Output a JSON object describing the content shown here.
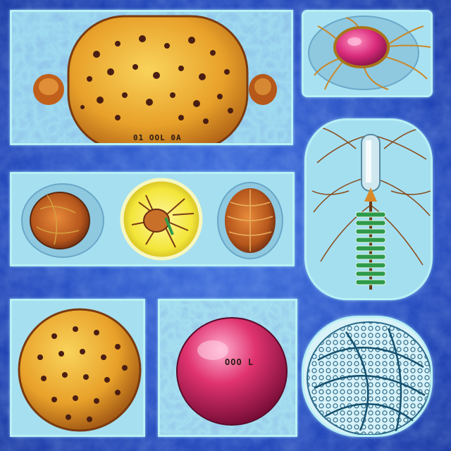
{
  "image": {
    "labels": {
      "top_cell": "01 OOL 0A",
      "pink_sphere": "OOO L"
    },
    "colors": {
      "background": "#1c43b8",
      "panel_fill": "#8fd2ea",
      "panel_border": "#b9f0f5",
      "orange_cell": "#e8a12a",
      "pink_cell": "#e0336f",
      "yellow_cell": "#f3e63a",
      "green_stripe": "#2e9a4a"
    }
  }
}
